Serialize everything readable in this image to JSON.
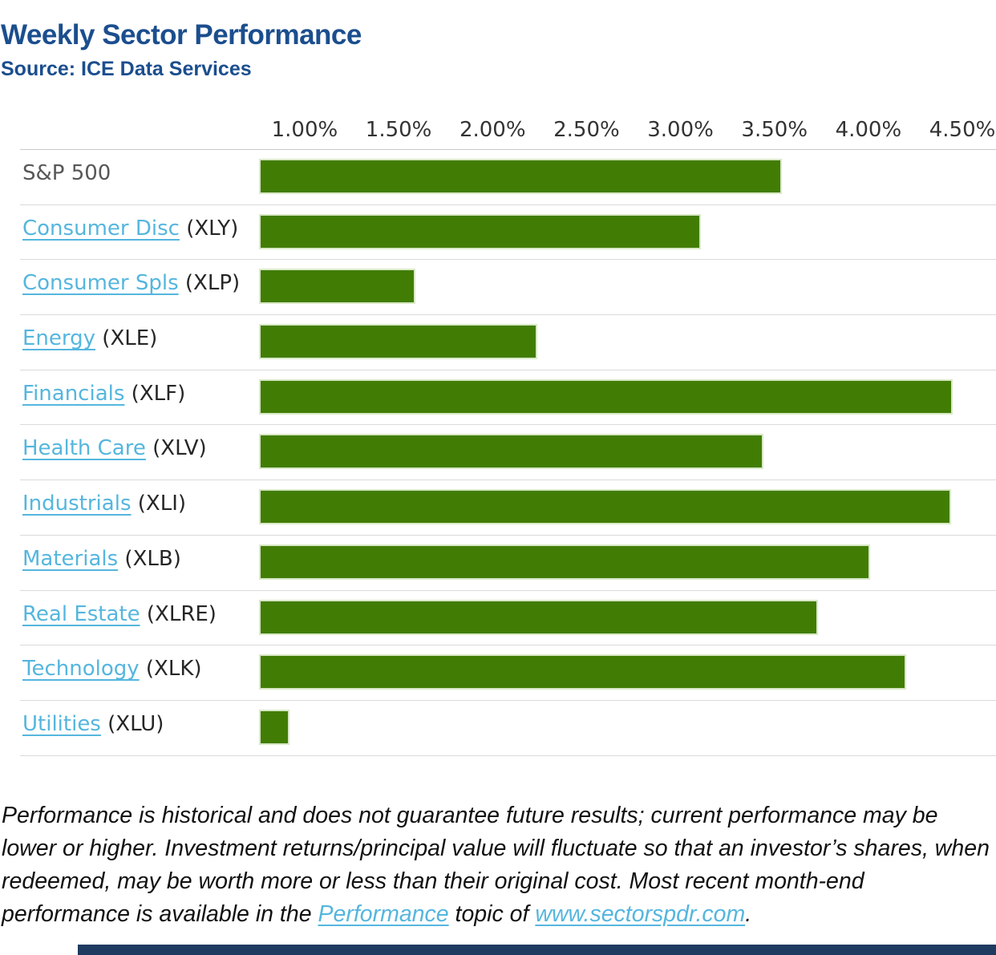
{
  "header": {
    "title": "Weekly Sector Performance",
    "source": "Source: ICE Data Services",
    "title_color": "#1b4e8e"
  },
  "chart_data": {
    "type": "bar",
    "orientation": "horizontal",
    "title": "Weekly Sector Performance",
    "unit": "%",
    "grid": false,
    "xlim": [
      0.757,
      4.679
    ],
    "x_ticks": [
      "1.00%",
      "1.50%",
      "2.00%",
      "2.50%",
      "3.00%",
      "3.50%",
      "4.00%",
      "4.50%"
    ],
    "x_tick_values": [
      1.0,
      1.5,
      2.0,
      2.5,
      3.0,
      3.5,
      4.0,
      4.5
    ],
    "bar_color": "#417d05",
    "bar_border_color": "#d9e8c6",
    "link_color": "#55b6de",
    "categories": [
      "S&P 500",
      "Consumer Disc",
      "Consumer Spls",
      "Energy",
      "Financials",
      "Health Care",
      "Industrials",
      "Materials",
      "Real Estate",
      "Technology",
      "Utilities"
    ],
    "values": [
      3.54,
      3.11,
      1.59,
      2.24,
      4.45,
      3.44,
      4.44,
      4.01,
      3.73,
      4.2,
      0.92
    ],
    "rows": [
      {
        "label": "S&P 500",
        "ticker": "",
        "linked": false,
        "value": 3.54
      },
      {
        "label": "Consumer Disc",
        "ticker": "(XLY)",
        "linked": true,
        "value": 3.11
      },
      {
        "label": "Consumer Spls",
        "ticker": "(XLP)",
        "linked": true,
        "value": 1.59
      },
      {
        "label": "Energy",
        "ticker": "(XLE)",
        "linked": true,
        "value": 2.24
      },
      {
        "label": "Financials",
        "ticker": "(XLF)",
        "linked": true,
        "value": 4.45
      },
      {
        "label": "Health Care",
        "ticker": "(XLV)",
        "linked": true,
        "value": 3.44
      },
      {
        "label": "Industrials",
        "ticker": "(XLI)",
        "linked": true,
        "value": 4.44
      },
      {
        "label": "Materials",
        "ticker": "(XLB)",
        "linked": true,
        "value": 4.01
      },
      {
        "label": "Real Estate",
        "ticker": "(XLRE)",
        "linked": true,
        "value": 3.73
      },
      {
        "label": "Technology",
        "ticker": "(XLK)",
        "linked": true,
        "value": 4.2
      },
      {
        "label": "Utilities",
        "ticker": "(XLU)",
        "linked": true,
        "value": 0.92
      }
    ]
  },
  "footer": {
    "disclaimer_segments": [
      {
        "text": "Performance is historical and does not guarantee future results; current performance may be lower or higher. Investment returns/principal value will fluctuate so that an investor’s shares, when redeemed, may be worth more or less than their original cost. Most recent month-end performance is available in the ",
        "link": false
      },
      {
        "text": "Performance",
        "link": true,
        "name": "performance-topic-link"
      },
      {
        "text": " topic of ",
        "link": false
      },
      {
        "text": "www.sectorspdr.com",
        "link": true,
        "name": "sectorspdr-link"
      },
      {
        "text": ".",
        "link": false
      }
    ],
    "accent_bar_color": "#1e3a5f"
  }
}
